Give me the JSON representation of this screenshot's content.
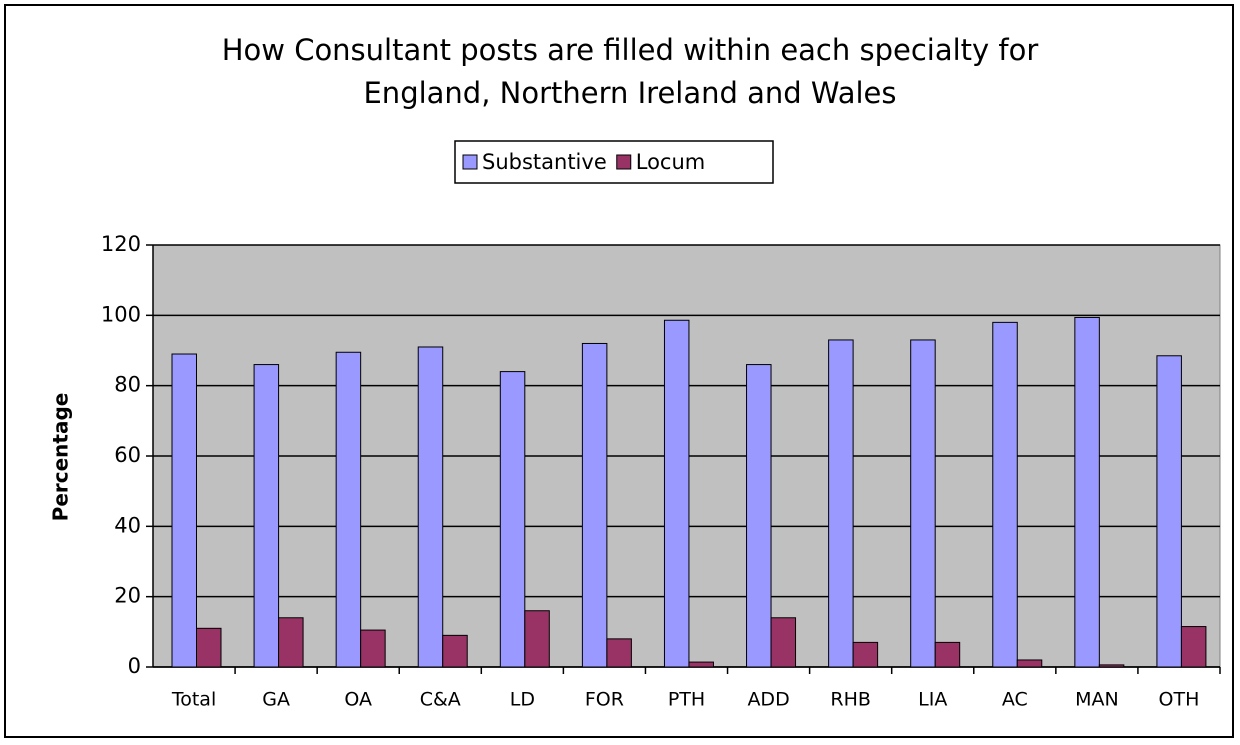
{
  "chart_data": {
    "type": "bar",
    "title": [
      "How Consultant posts are filled within each specialty for",
      "England, Northern Ireland and Wales"
    ],
    "y_label": "Percentage",
    "categories": [
      "Total",
      "GA",
      "OA",
      "C&A",
      "LD",
      "FOR",
      "PTH",
      "ADD",
      "RHB",
      "LIA",
      "AC",
      "MAN",
      "OTH"
    ],
    "series": [
      {
        "name": "Substantive",
        "color": "#9999ff",
        "values": [
          89,
          86,
          89.5,
          91,
          84,
          92,
          98.6,
          86,
          93,
          93,
          98,
          99.4,
          88.5
        ]
      },
      {
        "name": "Locum",
        "color": "#993366",
        "values": [
          11,
          14,
          10.5,
          9,
          16,
          8,
          1.4,
          14,
          7,
          7,
          2,
          0.6,
          11.5
        ]
      }
    ],
    "ylim": [
      0,
      120
    ],
    "yticks": [
      0,
      20,
      40,
      60,
      80,
      100,
      120
    ],
    "grid": true,
    "legend": "top"
  }
}
